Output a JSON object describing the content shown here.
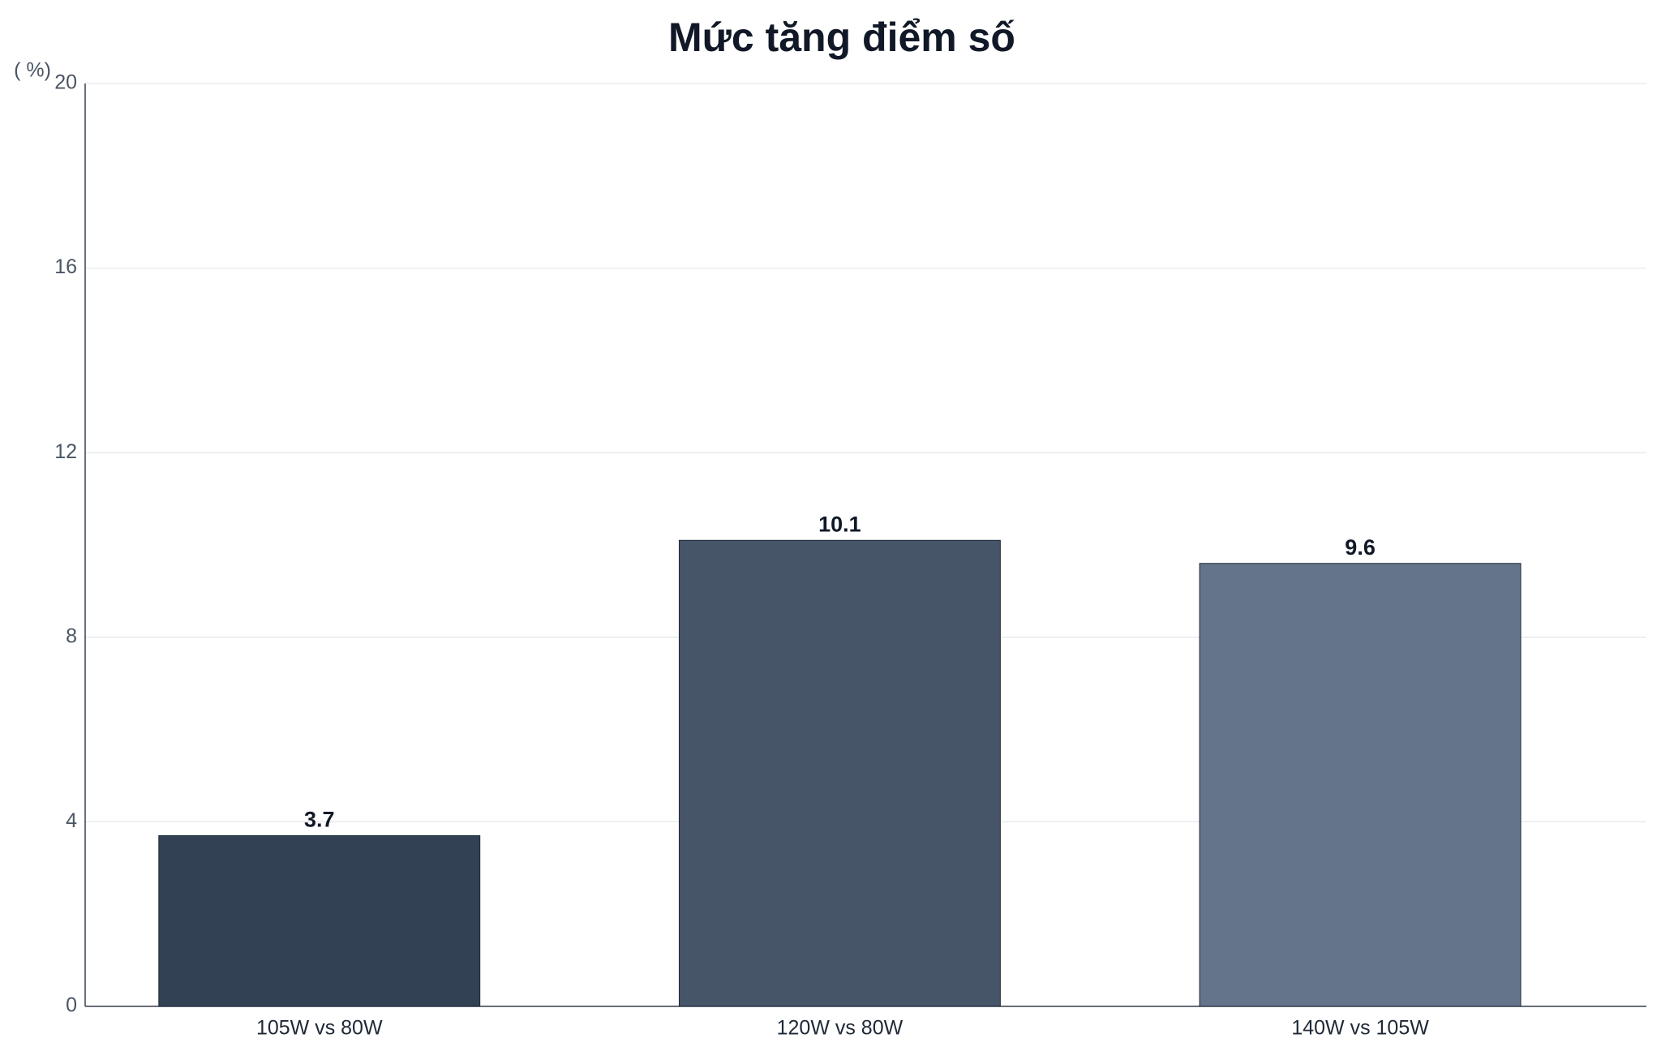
{
  "chart_data": {
    "type": "bar",
    "title": "Mức tăng điểm số",
    "y_label": "( %)",
    "categories": [
      "105W vs 80W",
      "120W vs 80W",
      "140W vs 105W"
    ],
    "values": [
      3.7,
      10.1,
      9.6
    ],
    "colors": [
      "#334155",
      "#475569",
      "#64748b"
    ],
    "ylim": [
      0,
      20
    ],
    "yticks": [
      0,
      4,
      8,
      12,
      16,
      20
    ],
    "grid": true
  }
}
